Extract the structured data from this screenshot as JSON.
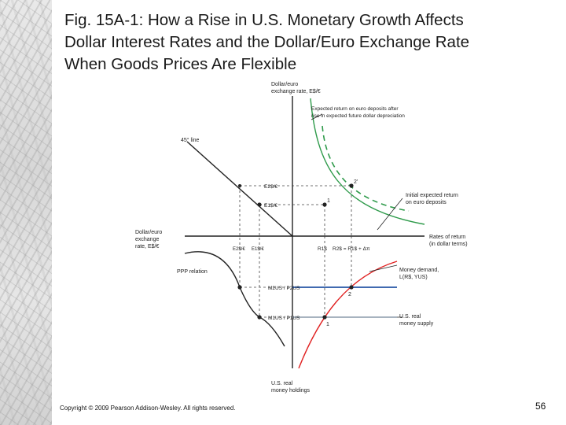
{
  "slide": {
    "title_lines": [
      "Fig. 15A-1: How a Rise in U.S. Monetary Growth Affects",
      "Dollar Interest Rates and the Dollar/Euro Exchange Rate",
      "When Goods Prices Are Flexible"
    ],
    "copyright": "Copyright © 2009 Pearson Addison-Wesley. All rights reserved.",
    "page_number": "56"
  },
  "diagram": {
    "axis_top_label": [
      "Dollar/euro",
      "exchange rate, E$/€"
    ],
    "axis_left_label": [
      "Dollar/euro",
      "exchange",
      "rate, E$/€"
    ],
    "axis_right_label": [
      "Rates of return",
      "(in dollar terms)"
    ],
    "axis_bottom_label": [
      "U.S. real",
      "money holdings"
    ],
    "line_45_label": "45° line",
    "ppp_label": "PPP relation",
    "expected_after_label": [
      "Expected return on euro deposits after",
      "rise in expected future dollar depreciation"
    ],
    "initial_expected_label": [
      "Initial expected return",
      "on euro deposits"
    ],
    "money_demand_label": [
      "Money demand,",
      "L(R$, YUS)"
    ],
    "money_supply_label": [
      "U.S. real",
      "money supply"
    ],
    "tick_E2": "E2$/€",
    "tick_E1": "E1$/€",
    "tick_R1": "R1$",
    "tick_R2": "R2$ = R1$ + Δπ",
    "tick_M2": "M2US / P2US",
    "tick_M1": "M1US / P1US",
    "point_labels": [
      "1",
      "2'",
      "1",
      "2"
    ],
    "colors": {
      "red": "#e02020",
      "green": "#2e9a4a",
      "blue": "#2455a4",
      "gray": "#8a9aaa"
    }
  }
}
